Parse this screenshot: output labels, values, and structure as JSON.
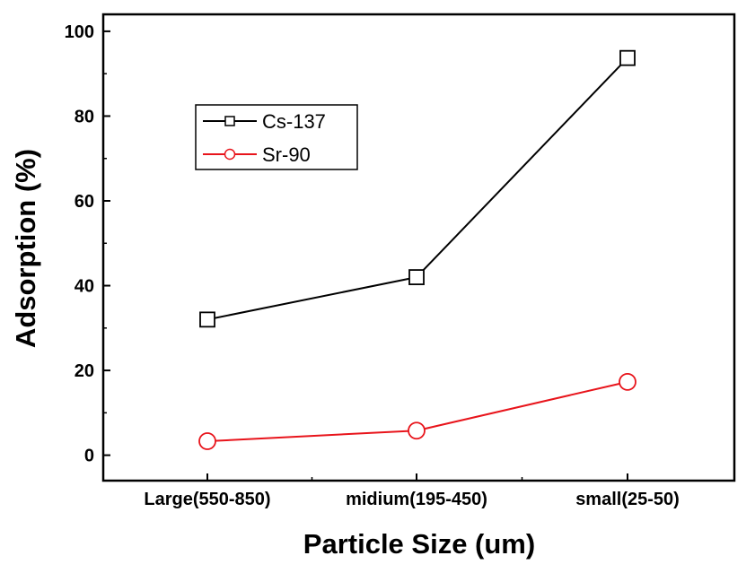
{
  "chart_data": {
    "type": "line",
    "title": "",
    "xlabel": "Particle Size (um)",
    "ylabel": "Adsorption (%)",
    "categories": [
      "Large(550-850)",
      "midium(195-450)",
      "small(25-50)"
    ],
    "ylim": [
      -6,
      104
    ],
    "yticks": [
      0,
      20,
      40,
      60,
      80,
      100
    ],
    "grid": false,
    "legend_position": "top-left",
    "series": [
      {
        "name": "Cs-137",
        "values": [
          32,
          42,
          93.7
        ],
        "color": "#000000",
        "marker": "square"
      },
      {
        "name": "Sr-90",
        "values": [
          3.3,
          5.8,
          17.3
        ],
        "color": "#e8141b",
        "marker": "circle"
      }
    ]
  }
}
